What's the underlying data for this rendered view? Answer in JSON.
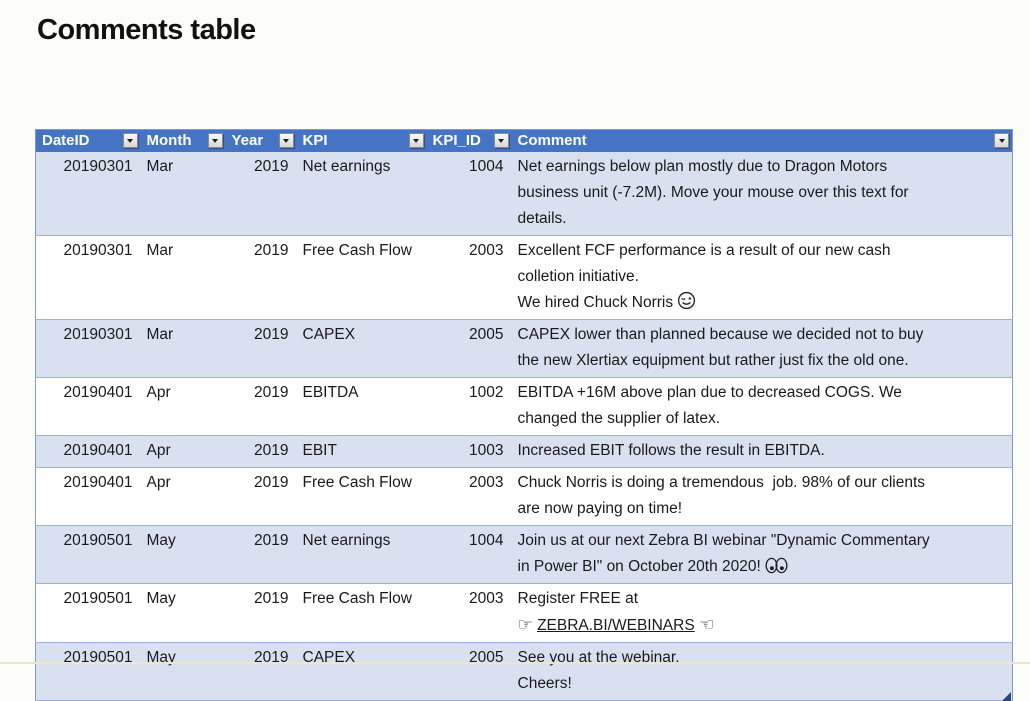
{
  "page": {
    "title": "Comments table"
  },
  "colors": {
    "header_bg": "#4674C5",
    "header_text": "#FFFFFF",
    "band_blue": "#D9E1F1",
    "band_white": "#FFFFFF",
    "row_border": "#9DB1DC",
    "outer_border": "#8098CC",
    "cell_text": "#1A1A1A",
    "handle": "#2A4480",
    "bottom_line": "#EDE6CC"
  },
  "icons": {
    "😉": "wink-emoji",
    "👀": "eyes-emoji",
    "☞": "point-right-icon",
    "☜": "point-left-icon",
    "filter": "filter-dropdown-icon"
  },
  "table": {
    "columns": [
      {
        "key": "dateid",
        "label": "DateID",
        "align": "right"
      },
      {
        "key": "month",
        "label": "Month",
        "align": "left"
      },
      {
        "key": "year",
        "label": "Year",
        "align": "right"
      },
      {
        "key": "kpi",
        "label": "KPI",
        "align": "left"
      },
      {
        "key": "kpi_id",
        "label": "KPI_ID",
        "align": "right"
      },
      {
        "key": "comment",
        "label": "Comment",
        "align": "left"
      }
    ],
    "rows": [
      {
        "dateid": "20190301",
        "month": "Mar",
        "year": "2019",
        "kpi": "Net earnings",
        "kpi_id": "1004",
        "hover_target": true,
        "comment_lines": [
          "Net earnings below plan mostly due to Dragon Motors",
          "business unit (-7.2M). Move your mouse over this text for",
          "details."
        ]
      },
      {
        "dateid": "20190301",
        "month": "Mar",
        "year": "2019",
        "kpi": "Free Cash Flow",
        "kpi_id": "2003",
        "comment_lines": [
          "Excellent FCF performance is a result of our new cash",
          "colletion initiative.",
          "We hired Chuck Norris 😉"
        ]
      },
      {
        "dateid": "20190301",
        "month": "Mar",
        "year": "2019",
        "kpi": "CAPEX",
        "kpi_id": "2005",
        "comment_lines": [
          "CAPEX lower than planned because we decided not to buy",
          "the new Xlertiax equipment but rather just fix the old one."
        ]
      },
      {
        "dateid": "20190401",
        "month": "Apr",
        "year": "2019",
        "kpi": "EBITDA",
        "kpi_id": "1002",
        "comment_lines": [
          "EBITDA +16M above plan due to decreased COGS. We",
          "changed the supplier of latex."
        ]
      },
      {
        "dateid": "20190401",
        "month": "Apr",
        "year": "2019",
        "kpi": "EBIT",
        "kpi_id": "1003",
        "comment_lines": [
          "Increased EBIT follows the result in EBITDA."
        ]
      },
      {
        "dateid": "20190401",
        "month": "Apr",
        "year": "2019",
        "kpi": "Free Cash Flow",
        "kpi_id": "2003",
        "comment_lines": [
          "Chuck Norris is doing a tremendous  job. 98% of our clients",
          "are now paying on time!"
        ]
      },
      {
        "dateid": "20190501",
        "month": "May",
        "year": "2019",
        "kpi": "Net earnings",
        "kpi_id": "1004",
        "comment_lines": [
          "Join us at our next Zebra BI webinar \"Dynamic Commentary",
          "in Power BI\" on October 20th 2020! 👀"
        ]
      },
      {
        "dateid": "20190501",
        "month": "May",
        "year": "2019",
        "kpi": "Free Cash Flow",
        "kpi_id": "2003",
        "link_text": "ZEBRA.BI/WEBINARS",
        "comment_lines": [
          "Register FREE at",
          "☞ ZEBRA.BI/WEBINARS ☜"
        ]
      },
      {
        "dateid": "20190501",
        "month": "May",
        "year": "2019",
        "kpi": "CAPEX",
        "kpi_id": "2005",
        "comment_lines": [
          "See you at the webinar,",
          "Cheers!"
        ]
      }
    ]
  }
}
